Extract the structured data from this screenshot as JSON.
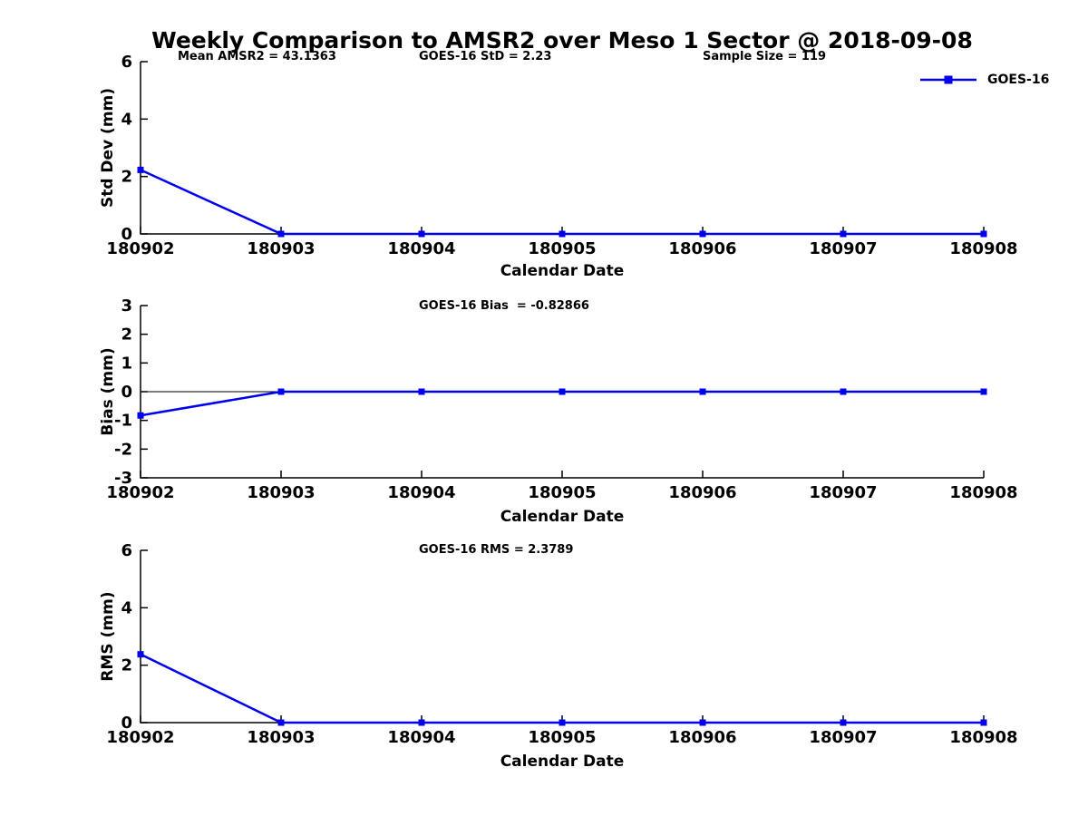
{
  "figure": {
    "title": "Weekly Comparison to AMSR2 over Meso 1 Sector @ 2018-09-08"
  },
  "legend": {
    "label": "GOES-16"
  },
  "colors": {
    "series": "#0000ee",
    "axis": "#000000",
    "text": "#000000",
    "background": "#ffffff"
  },
  "chart_data": [
    {
      "type": "line",
      "name": "std-dev-panel",
      "x": [
        "180902",
        "180903",
        "180904",
        "180905",
        "180906",
        "180907",
        "180908"
      ],
      "series": [
        {
          "name": "GOES-16",
          "values": [
            2.23,
            0,
            0,
            0,
            0,
            0,
            0
          ]
        }
      ],
      "xlabel": "Calendar Date",
      "ylabel": "Std Dev (mm)",
      "ylim": [
        0,
        6
      ],
      "yticks": [
        0,
        2,
        4,
        6
      ],
      "grid": false,
      "legend_position": "top-right",
      "marker": "square",
      "annotations": [
        "Mean AMSR2 = 43.1363",
        "GOES-16 StD = 2.23",
        "Sample Size = 119"
      ]
    },
    {
      "type": "line",
      "name": "bias-panel",
      "x": [
        "180902",
        "180903",
        "180904",
        "180905",
        "180906",
        "180907",
        "180908"
      ],
      "series": [
        {
          "name": "GOES-16",
          "values": [
            -0.82866,
            0,
            0,
            0,
            0,
            0,
            0
          ]
        }
      ],
      "xlabel": "Calendar Date",
      "ylabel": "Bias (mm)",
      "ylim": [
        -3,
        3
      ],
      "yticks": [
        -3,
        -2,
        -1,
        0,
        1,
        2,
        3
      ],
      "zero_line": true,
      "grid": false,
      "marker": "square",
      "annotations": [
        "GOES-16 Bias  = -0.82866"
      ]
    },
    {
      "type": "line",
      "name": "rms-panel",
      "x": [
        "180902",
        "180903",
        "180904",
        "180905",
        "180906",
        "180907",
        "180908"
      ],
      "series": [
        {
          "name": "GOES-16",
          "values": [
            2.3789,
            0,
            0,
            0,
            0,
            0,
            0
          ]
        }
      ],
      "xlabel": "Calendar Date",
      "ylabel": "RMS (mm)",
      "ylim": [
        0,
        6
      ],
      "yticks": [
        0,
        2,
        4,
        6
      ],
      "grid": false,
      "marker": "square",
      "annotations": [
        "GOES-16 RMS = 2.3789"
      ]
    }
  ]
}
